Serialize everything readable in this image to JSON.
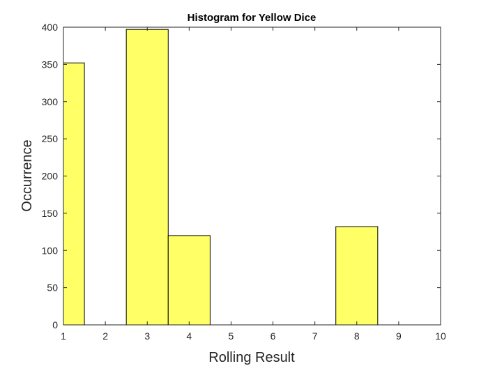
{
  "chart_data": {
    "type": "bar",
    "title": "Histogram for Yellow Dice",
    "xlabel": "Rolling Result",
    "ylabel": "Occurrence",
    "xlim": [
      1,
      10
    ],
    "ylim": [
      0,
      400
    ],
    "xticks": [
      "1",
      "2",
      "3",
      "4",
      "5",
      "6",
      "7",
      "8",
      "9",
      "10"
    ],
    "yticks": [
      "0",
      "50",
      "100",
      "150",
      "200",
      "250",
      "300",
      "350",
      "400"
    ],
    "bins": [
      {
        "from": 0.5,
        "to": 1.5,
        "value": 352
      },
      {
        "from": 2.5,
        "to": 3.5,
        "value": 397
      },
      {
        "from": 3.5,
        "to": 4.5,
        "value": 120
      },
      {
        "from": 7.5,
        "to": 8.5,
        "value": 132
      }
    ],
    "bar_color": "#ffff66",
    "edge_color": "#000000",
    "grid": false
  }
}
